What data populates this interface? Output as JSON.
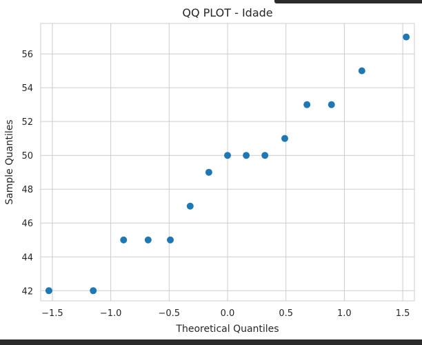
{
  "chart_data": {
    "type": "scatter",
    "title": "QQ PLOT - Idade",
    "xlabel": "Theoretical Quantiles",
    "ylabel": "Sample Quantiles",
    "xlim": [
      -1.6,
      1.6
    ],
    "ylim": [
      41.4,
      57.8
    ],
    "x_ticks": [
      -1.5,
      -1.0,
      -0.5,
      0.0,
      0.5,
      1.0,
      1.5
    ],
    "x_tick_labels": [
      "−1.5",
      "−1.0",
      "−0.5",
      "0.0",
      "0.5",
      "1.0",
      "1.5"
    ],
    "y_ticks": [
      42,
      44,
      46,
      48,
      50,
      52,
      54,
      56
    ],
    "y_tick_labels": [
      "42",
      "44",
      "46",
      "48",
      "50",
      "52",
      "54",
      "56"
    ],
    "grid": true,
    "marker_color": "#1f77b4",
    "points": [
      {
        "x": -1.53,
        "y": 42
      },
      {
        "x": -1.15,
        "y": 42
      },
      {
        "x": -0.89,
        "y": 45
      },
      {
        "x": -0.68,
        "y": 45
      },
      {
        "x": -0.49,
        "y": 45
      },
      {
        "x": -0.32,
        "y": 47
      },
      {
        "x": -0.16,
        "y": 49
      },
      {
        "x": 0.0,
        "y": 50
      },
      {
        "x": 0.16,
        "y": 50
      },
      {
        "x": 0.32,
        "y": 50
      },
      {
        "x": 0.49,
        "y": 51
      },
      {
        "x": 0.68,
        "y": 53
      },
      {
        "x": 0.89,
        "y": 53
      },
      {
        "x": 1.15,
        "y": 55
      },
      {
        "x": 1.53,
        "y": 57
      }
    ]
  }
}
